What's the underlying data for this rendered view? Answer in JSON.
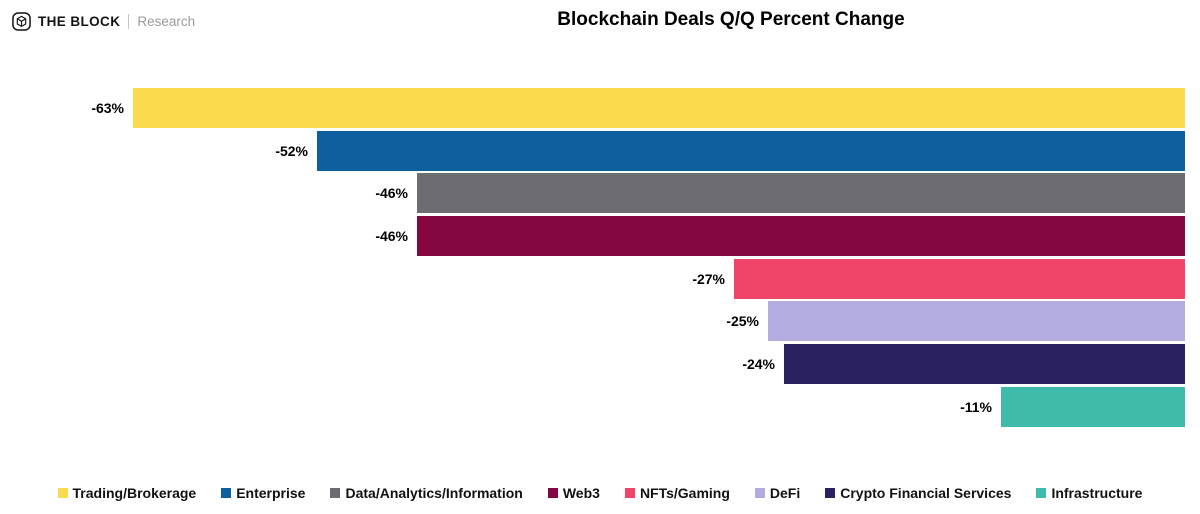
{
  "brand": {
    "name": "THE BLOCK",
    "division": "Research"
  },
  "chart_data": {
    "type": "bar",
    "orientation": "horizontal",
    "title": "Blockchain Deals Q/Q Percent Change",
    "categories": [
      "Trading/Brokerage",
      "Enterprise",
      "Data/Analytics/Information",
      "Web3",
      "NFTs/Gaming",
      "DeFi",
      "Crypto Financial Services",
      "Infrastructure"
    ],
    "values": [
      -63,
      -52,
      -46,
      -46,
      -27,
      -25,
      -24,
      -11
    ],
    "value_labels": [
      "-63%",
      "-52%",
      "-46%",
      "-46%",
      "-27%",
      "-25%",
      "-24%",
      "-11%"
    ],
    "colors": [
      "#FADB50",
      "#0E5FA0",
      "#6C6C72",
      "#850742",
      "#F04568",
      "#B3ACE0",
      "#2A2161",
      "#3FBBAC"
    ],
    "value_axis": {
      "min": -63,
      "max": 0,
      "baseline": "right",
      "gridlines": false,
      "tick_labels_visible": false
    },
    "legend_position": "bottom"
  }
}
